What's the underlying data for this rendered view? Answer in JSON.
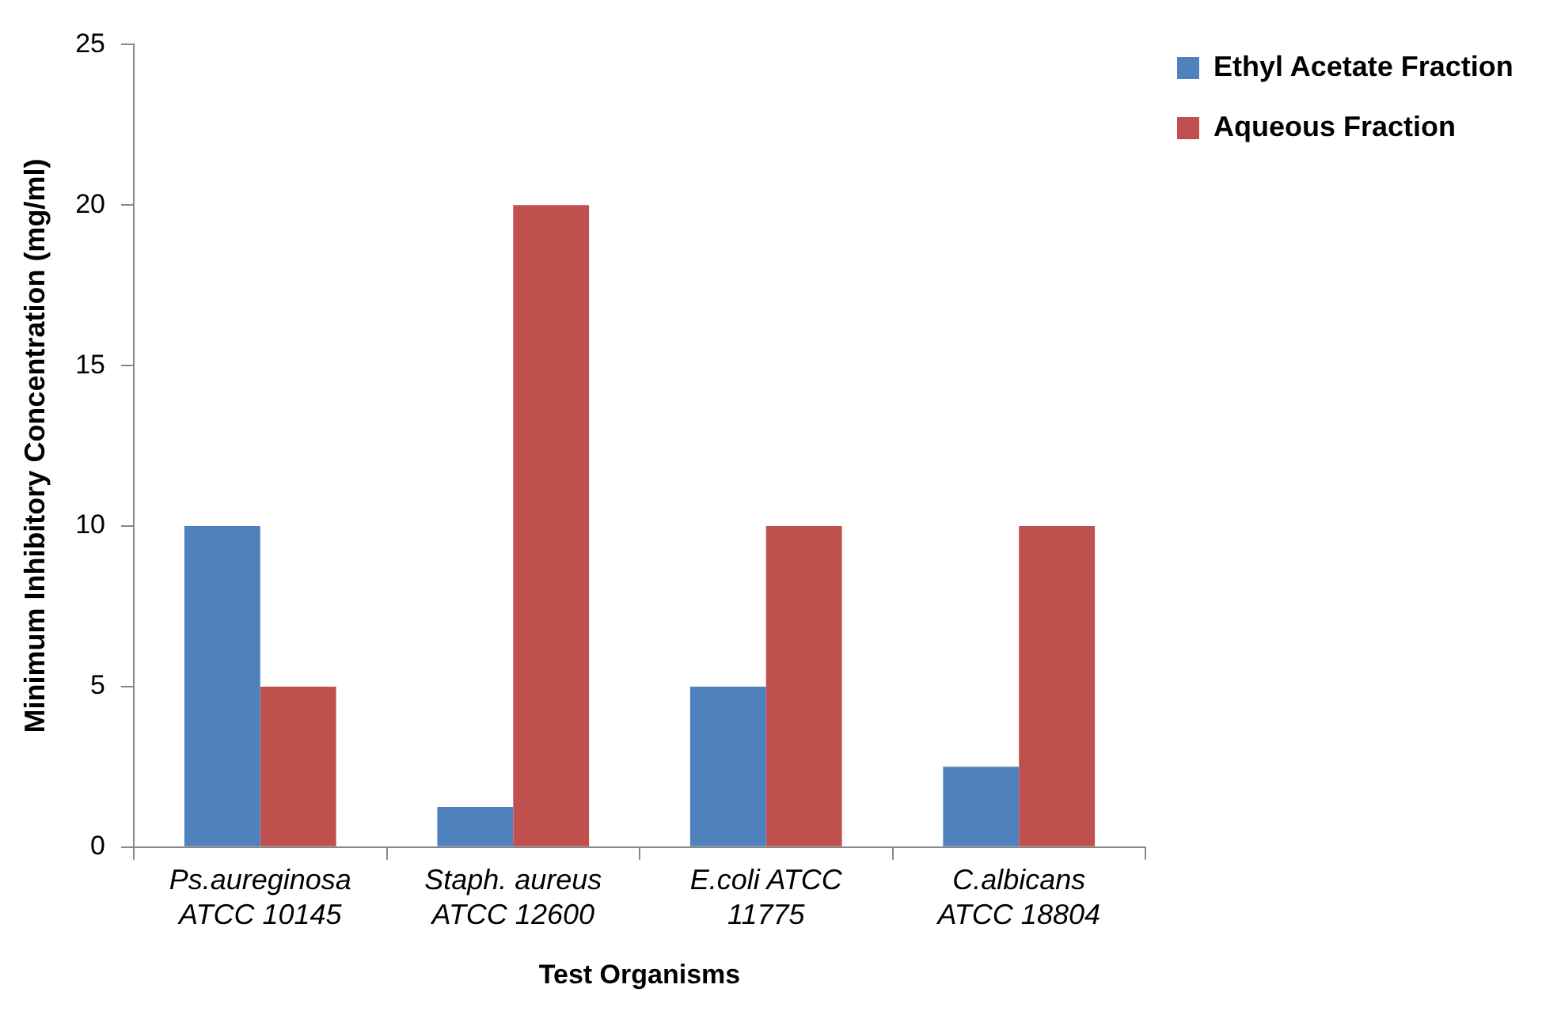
{
  "chart_data": {
    "type": "bar",
    "xlabel": "Test Organisms",
    "ylabel": "Minimum Inhibitory Concentration (mg/ml)",
    "categories": [
      "Ps.aureginosa\nATCC 10145",
      "Staph. aureus\nATCC 12600",
      "E.coli ATCC\n11775",
      "C.albicans\nATCC 18804"
    ],
    "series": [
      {
        "name": "Ethyl Acetate Fraction",
        "color": "#4f81bd",
        "values": [
          10,
          1.25,
          5,
          2.5
        ]
      },
      {
        "name": "Aqueous Fraction",
        "color": "#c0504d",
        "values": [
          5,
          20,
          10,
          10
        ]
      }
    ],
    "ylim": [
      0,
      25
    ],
    "yticks": [
      0,
      5,
      10,
      15,
      20,
      25
    ],
    "grid": false,
    "legend": "right"
  }
}
